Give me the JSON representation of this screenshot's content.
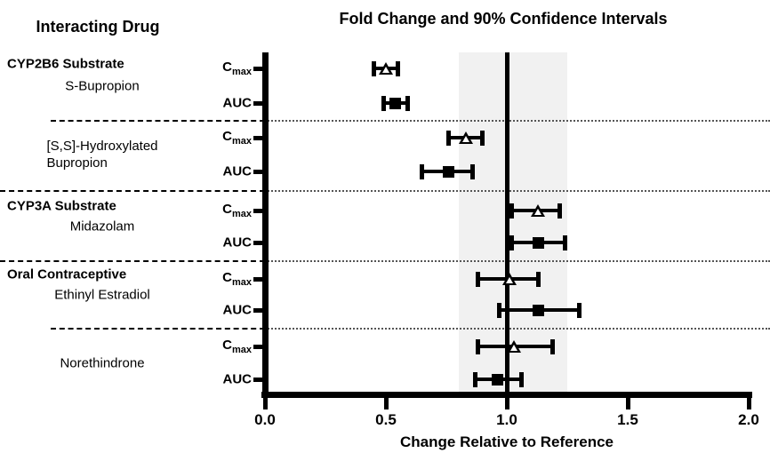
{
  "left_panel": {
    "title": "Interacting Drug"
  },
  "chart_data": {
    "type": "forest",
    "title": "Fold Change and 90% Confidence Intervals",
    "ci_level": "90%",
    "x_axis": {
      "label": "Change Relative to Reference",
      "tick_values": [
        0,
        0.5,
        1.0,
        1.5,
        2.0
      ],
      "tick_labels": [
        "0.0",
        "0.5",
        "1.0",
        "1.5",
        "2.0"
      ],
      "range": [
        0.0,
        2.0
      ]
    },
    "reference_line_x": 1.0,
    "shaded_region": {
      "from": 0.8,
      "to": 1.25
    },
    "marker_key": {
      "Cmax": "open-triangle",
      "AUC": "filled-square"
    },
    "colors": {
      "marker": "#000000",
      "shaded_region": "#f1f1f1",
      "axis": "#000000",
      "text": "#000000"
    },
    "groups": [
      {
        "header": "CYP2B6 Substrate",
        "drugs": [
          {
            "name_lines": [
              "S-Bupropion"
            ],
            "rows": [
              {
                "metric": "Cmax",
                "marker": "open-triangle",
                "value": 0.5,
                "ci_low": 0.45,
                "ci_high": 0.55
              },
              {
                "metric": "AUC",
                "marker": "filled-square",
                "value": 0.54,
                "ci_low": 0.49,
                "ci_high": 0.59
              }
            ]
          },
          {
            "name_lines": [
              "[S,S]-Hydroxylated",
              "Bupropion"
            ],
            "rows": [
              {
                "metric": "Cmax",
                "marker": "open-triangle",
                "value": 0.83,
                "ci_low": 0.76,
                "ci_high": 0.9
              },
              {
                "metric": "AUC",
                "marker": "filled-square",
                "value": 0.76,
                "ci_low": 0.65,
                "ci_high": 0.86
              }
            ]
          }
        ]
      },
      {
        "header": "CYP3A Substrate",
        "drugs": [
          {
            "name_lines": [
              "Midazolam"
            ],
            "rows": [
              {
                "metric": "Cmax",
                "marker": "open-triangle",
                "value": 1.13,
                "ci_low": 1.02,
                "ci_high": 1.22
              },
              {
                "metric": "AUC",
                "marker": "filled-square",
                "value": 1.13,
                "ci_low": 1.02,
                "ci_high": 1.24
              }
            ]
          }
        ]
      },
      {
        "header": "Oral Contraceptive",
        "drugs": [
          {
            "name_lines": [
              "Ethinyl Estradiol"
            ],
            "rows": [
              {
                "metric": "Cmax",
                "marker": "open-triangle",
                "value": 1.01,
                "ci_low": 0.88,
                "ci_high": 1.13
              },
              {
                "metric": "AUC",
                "marker": "filled-square",
                "value": 1.13,
                "ci_low": 0.97,
                "ci_high": 1.3
              }
            ]
          },
          {
            "name_lines": [
              "Norethindrone"
            ],
            "rows": [
              {
                "metric": "Cmax",
                "marker": "open-triangle",
                "value": 1.03,
                "ci_low": 0.88,
                "ci_high": 1.19
              },
              {
                "metric": "AUC",
                "marker": "filled-square",
                "value": 0.96,
                "ci_low": 0.87,
                "ci_high": 1.06
              }
            ]
          }
        ]
      }
    ]
  }
}
